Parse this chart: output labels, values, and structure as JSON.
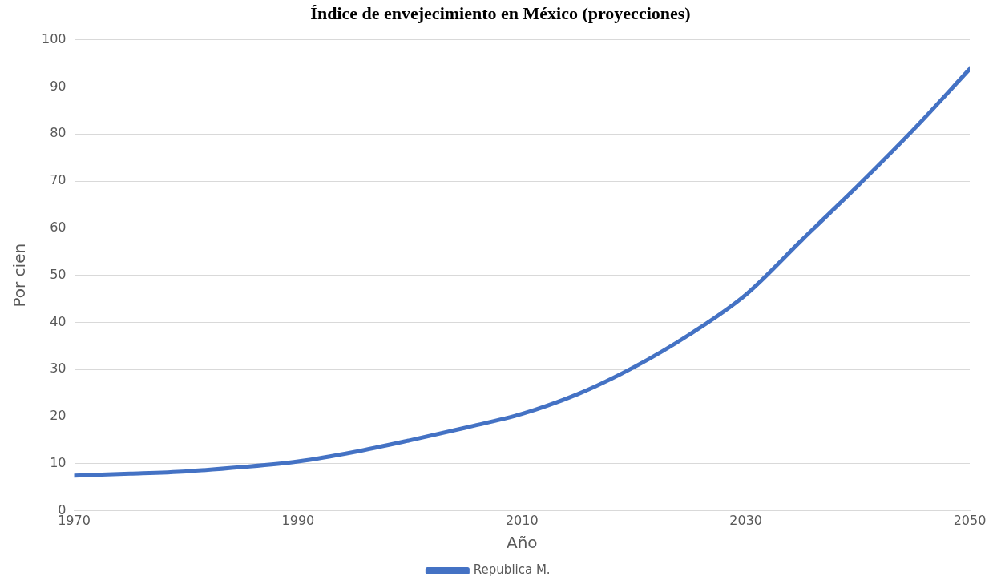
{
  "chart_data": {
    "type": "line",
    "title": "Índice de envejecimiento en México (proyecciones)",
    "xlabel": "Año",
    "ylabel": "Por cien",
    "x": [
      1970,
      1975,
      1980,
      1985,
      1990,
      1995,
      2000,
      2005,
      2010,
      2015,
      2020,
      2025,
      2030,
      2035,
      2040,
      2045,
      2050
    ],
    "series": [
      {
        "name": "Republica M.",
        "color": "#4472c4",
        "values": [
          7.5,
          7.9,
          8.4,
          9.3,
          10.5,
          12.5,
          15,
          17.7,
          20.6,
          24.8,
          30.5,
          37.5,
          45.9,
          57.5,
          69,
          81,
          93.8
        ]
      }
    ],
    "xlim": [
      1970,
      2050
    ],
    "xticks": [
      1970,
      1990,
      2010,
      2030,
      2050
    ],
    "ylim": [
      0,
      100
    ],
    "yticks": [
      0,
      10,
      20,
      30,
      40,
      50,
      60,
      70,
      80,
      90,
      100
    ],
    "grid": "y",
    "legend": "bottom",
    "marker": "none",
    "line_style": "solid"
  }
}
